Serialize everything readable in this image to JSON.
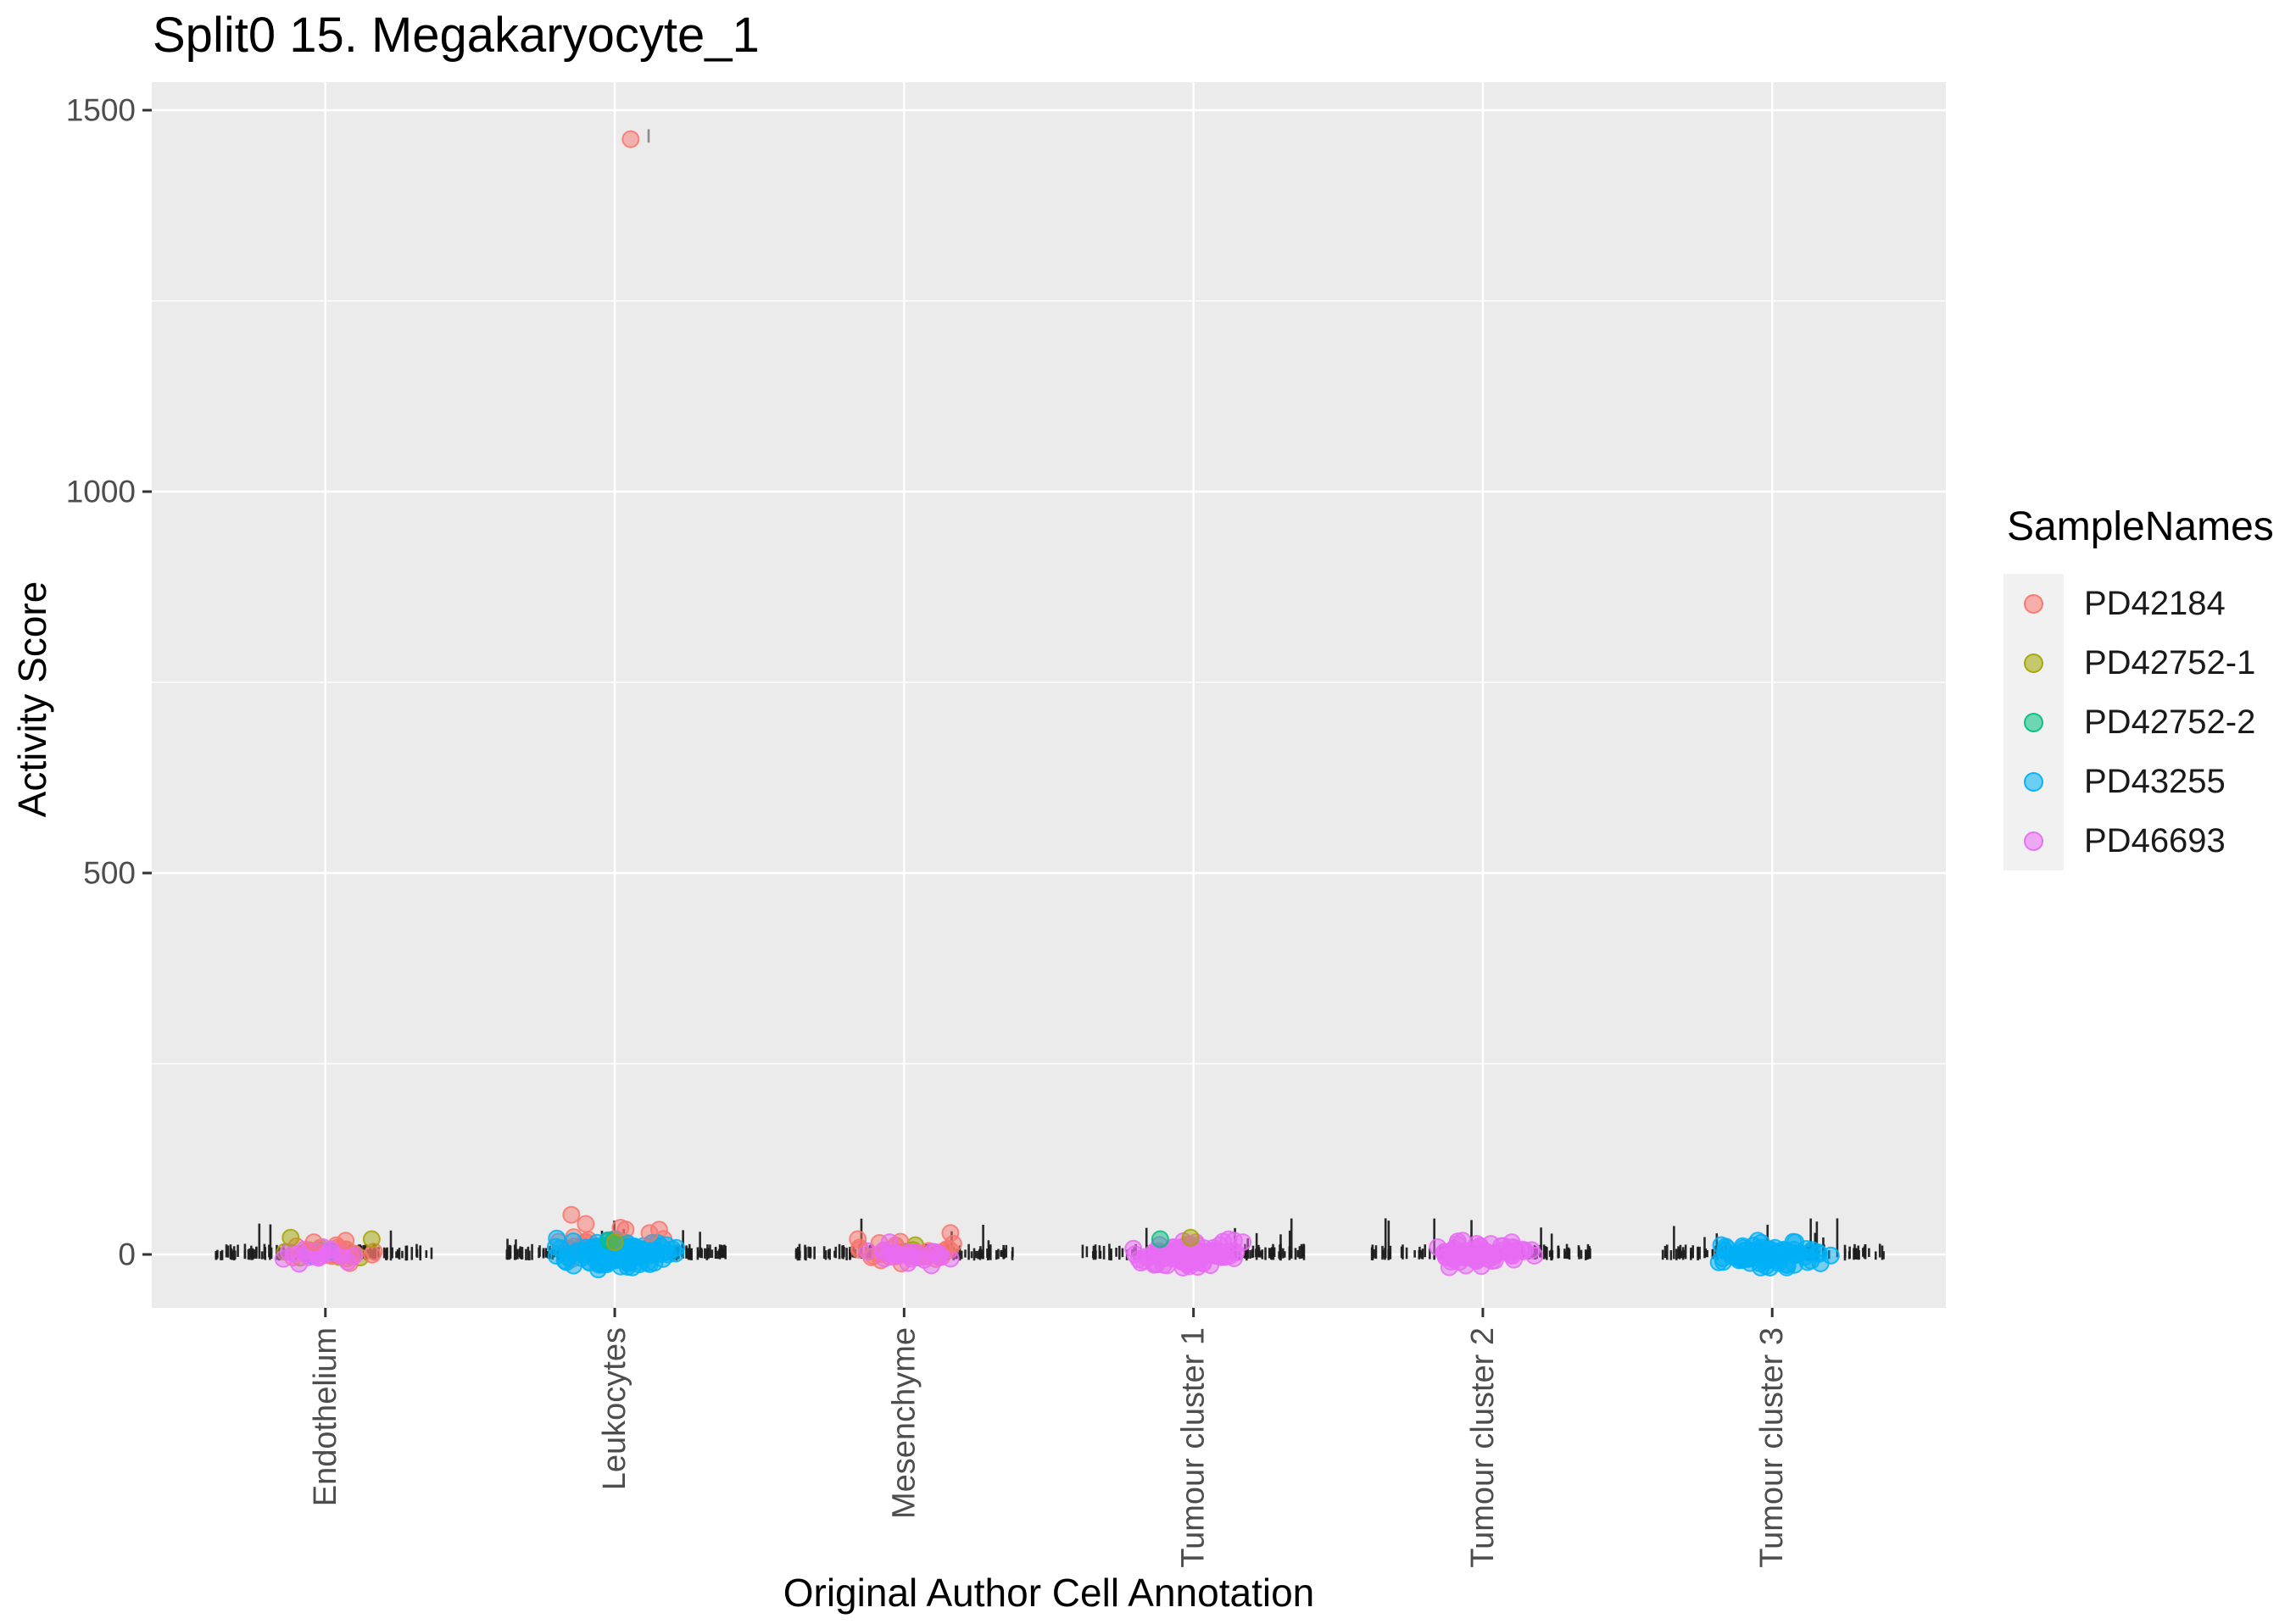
{
  "title": "Split0 15. Megakaryocyte_1",
  "axes": {
    "x_title": "Original Author Cell Annotation",
    "y_title": "Activity Score",
    "y_tick_labels": [
      "0",
      "500",
      "1000",
      "1500"
    ],
    "x_categories": [
      "Endothelium",
      "Leukocytes",
      "Mesenchyme",
      "Tumour cluster 1",
      "Tumour cluster 2",
      "Tumour cluster 3"
    ]
  },
  "legend": {
    "title": "SampleNames",
    "items": [
      {
        "label": "PD42184",
        "color": "#F8766D"
      },
      {
        "label": "PD42752-1",
        "color": "#A3A500"
      },
      {
        "label": "PD42752-2",
        "color": "#00BF7D"
      },
      {
        "label": "PD43255",
        "color": "#00B0F6"
      },
      {
        "label": "PD46693",
        "color": "#E76BF3"
      }
    ]
  },
  "chart_data": {
    "type": "scatter",
    "subtype": "jittered strip plot (activity scores per cell, coloured by sample, with black tick rug)",
    "title": "Split0 15. Megakaryocyte_1",
    "xlabel": "Original Author Cell Annotation",
    "ylabel": "Activity Score",
    "ylim": [
      -73,
      1536
    ],
    "y_breaks": [
      0,
      500,
      1000,
      1500
    ],
    "y_minor_breaks": [
      250,
      750,
      1250
    ],
    "grid": "on",
    "legend_position": "right",
    "panel_bg": "#EBEBEB",
    "grid_color": "#FFFFFF",
    "tick_color": "#333333",
    "tick_label_color": "#4D4D4D",
    "rug_color": "#1C1C1C",
    "categories": [
      "Endothelium",
      "Leukocytes",
      "Mesenchyme",
      "Tumour cluster 1",
      "Tumour cluster 2",
      "Tumour cluster 3"
    ],
    "series": [
      {
        "name": "PD42184",
        "color": "#F8766D"
      },
      {
        "name": "PD42752-1",
        "color": "#A3A500"
      },
      {
        "name": "PD42752-2",
        "color": "#00BF7D"
      },
      {
        "name": "PD43255",
        "color": "#00B0F6"
      },
      {
        "name": "PD46693",
        "color": "#E76BF3"
      }
    ],
    "clusters": [
      {
        "category": "Endothelium",
        "rug": {
          "n": 120,
          "x_spread": 0.385
        },
        "groups": [
          {
            "sample": "PD42752-1",
            "n": 9,
            "x_spread": 0.18,
            "y_center": 6,
            "y_spread": 10
          },
          {
            "sample": "PD42752-2",
            "n": 3,
            "x_spread": 0.1,
            "y_center": 2,
            "y_spread": 8
          },
          {
            "sample": "PD42184",
            "n": 20,
            "x_spread": 0.21,
            "y_center": 2,
            "y_spread": 11
          },
          {
            "sample": "PD43255",
            "n": 2,
            "x_spread": 0.15,
            "y_center": 0,
            "y_spread": 8
          },
          {
            "sample": "PD46693",
            "n": 20,
            "x_spread": 0.2,
            "y_center": -2,
            "y_spread": 10
          }
        ],
        "accents": [
          {
            "sample": "PD42752-1",
            "dx": -0.12,
            "y": 22
          },
          {
            "sample": "PD42752-1",
            "dx": 0.16,
            "y": 20
          },
          {
            "sample": "PD42184",
            "dx": 0.07,
            "y": 18
          },
          {
            "sample": "PD42184",
            "dx": -0.04,
            "y": 16
          }
        ]
      },
      {
        "category": "Leukocytes",
        "rug": {
          "n": 130,
          "x_spread": 0.385
        },
        "groups": [
          {
            "sample": "PD42184",
            "n": 26,
            "x_spread": 0.2,
            "y_center": 14,
            "y_spread": 13
          },
          {
            "sample": "PD42752-1",
            "n": 3,
            "x_spread": 0.12,
            "y_center": 8,
            "y_spread": 6
          },
          {
            "sample": "PD42752-2",
            "n": 3,
            "x_spread": 0.1,
            "y_center": 6,
            "y_spread": 6
          },
          {
            "sample": "PD46693",
            "n": 6,
            "x_spread": 0.22,
            "y_center": 0,
            "y_spread": 8
          },
          {
            "sample": "PD43255",
            "n": 130,
            "x_spread": 0.235,
            "y_center": 0,
            "y_spread": 15
          }
        ],
        "accents": [
          {
            "sample": "PD42184",
            "dx": -0.15,
            "y": 52
          },
          {
            "sample": "PD42184",
            "dx": -0.1,
            "y": 40
          },
          {
            "sample": "PD42184",
            "dx": 0.02,
            "y": 35
          },
          {
            "sample": "PD42184",
            "dx": 0.12,
            "y": 28
          },
          {
            "sample": "PD42752-2",
            "dx": -0.02,
            "y": 18
          },
          {
            "sample": "PD42752-1",
            "dx": 0.0,
            "y": 16
          }
        ]
      },
      {
        "category": "Mesenchyme",
        "rug": {
          "n": 120,
          "x_spread": 0.385
        },
        "groups": [
          {
            "sample": "PD42752-2",
            "n": 2,
            "x_spread": 0.08,
            "y_center": 2,
            "y_spread": 6
          },
          {
            "sample": "PD42752-1",
            "n": 2,
            "x_spread": 0.12,
            "y_center": 4,
            "y_spread": 6
          },
          {
            "sample": "PD42184",
            "n": 30,
            "x_spread": 0.21,
            "y_center": 3,
            "y_spread": 12
          },
          {
            "sample": "PD46693",
            "n": 22,
            "x_spread": 0.19,
            "y_center": -2,
            "y_spread": 9
          }
        ],
        "accents": [
          {
            "sample": "PD42184",
            "dx": 0.16,
            "y": 28
          },
          {
            "sample": "PD42184",
            "dx": 0.17,
            "y": 14
          },
          {
            "sample": "PD42184",
            "dx": -0.16,
            "y": 20
          },
          {
            "sample": "PD46693",
            "dx": -0.05,
            "y": 16
          }
        ]
      },
      {
        "category": "Tumour cluster 1",
        "rug": {
          "n": 120,
          "x_spread": 0.385
        },
        "groups": [
          {
            "sample": "PD43255",
            "n": 3,
            "x_spread": 0.15,
            "y_center": 2,
            "y_spread": 8
          },
          {
            "sample": "PD46693",
            "n": 95,
            "x_spread": 0.235,
            "y_center": 0,
            "y_spread": 14
          }
        ],
        "accents": [
          {
            "sample": "PD42752-2",
            "dx": -0.115,
            "y": 20
          },
          {
            "sample": "PD42752-1",
            "dx": -0.01,
            "y": 22
          },
          {
            "sample": "PD46693",
            "dx": 0.14,
            "y": 18
          },
          {
            "sample": "PD46693",
            "dx": 0.17,
            "y": 16
          }
        ]
      },
      {
        "category": "Tumour cluster 2",
        "rug": {
          "n": 115,
          "x_spread": 0.385
        },
        "groups": [
          {
            "sample": "PD46693",
            "n": 70,
            "x_spread": 0.21,
            "y_center": 0,
            "y_spread": 12
          }
        ],
        "accents": [
          {
            "sample": "PD46693",
            "dx": -0.07,
            "y": 18
          },
          {
            "sample": "PD46693",
            "dx": 0.1,
            "y": 16
          }
        ]
      },
      {
        "category": "Tumour cluster 3",
        "rug": {
          "n": 115,
          "x_spread": 0.385
        },
        "groups": [
          {
            "sample": "PD43255",
            "n": 85,
            "x_spread": 0.225,
            "y_center": 0,
            "y_spread": 13
          }
        ],
        "accents": [
          {
            "sample": "PD43255",
            "dx": -0.05,
            "y": 18
          },
          {
            "sample": "PD43255",
            "dx": 0.08,
            "y": 16
          }
        ]
      }
    ],
    "outliers": [
      {
        "category": "Leukocytes",
        "sample": "PD42184",
        "dx": 0.055,
        "y": 1462,
        "rug_tick": {
          "dx": 0.117,
          "y": 1462,
          "h": 13,
          "color": "#8A8A8A"
        }
      }
    ]
  }
}
